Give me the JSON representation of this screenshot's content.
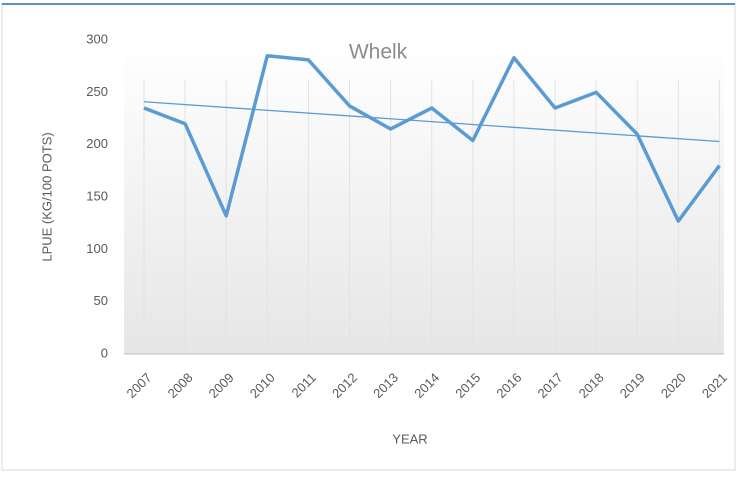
{
  "chart_data": {
    "type": "line",
    "title": "Whelk",
    "x_label": "YEAR",
    "y_label": "LPUE (KG/100 POTS)",
    "categories": [
      "2007",
      "2008",
      "2009",
      "2010",
      "2011",
      "2012",
      "2013",
      "2014",
      "2015",
      "2016",
      "2017",
      "2018",
      "2019",
      "2020",
      "2021"
    ],
    "values": [
      235,
      220,
      132,
      285,
      281,
      237,
      215,
      235,
      204,
      283,
      235,
      250,
      210,
      127,
      180
    ],
    "color": "#5b9bd5",
    "trendline": {
      "start": 241,
      "end": 203,
      "color": "#5b9bd5"
    },
    "ylim": [
      0,
      300
    ],
    "yticks": [
      0,
      50,
      100,
      150,
      200,
      250,
      300
    ],
    "grid": true
  }
}
